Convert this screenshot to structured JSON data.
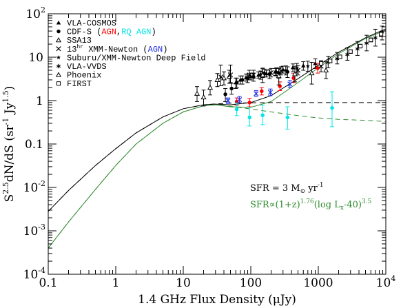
{
  "chart_data": {
    "type": "scatter",
    "title": "",
    "xlabel": "1.4 GHz Flux Density (μJy)",
    "ylabel": "S^{2.5}dN/dS (sr^{-1} Jy^{1.5})",
    "x_scale": "log",
    "y_scale": "log",
    "xlim": [
      0.1,
      10000
    ],
    "ylim": [
      0.0001,
      100
    ],
    "x_ticks": [
      {
        "value": 0.1,
        "label": "0.1"
      },
      {
        "value": 1,
        "label": "1"
      },
      {
        "value": 10,
        "label": "10"
      },
      {
        "value": 100,
        "label": "100"
      },
      {
        "value": 1000,
        "label": "1000"
      },
      {
        "value": 10000,
        "label": "10",
        "exp": "4"
      }
    ],
    "y_ticks": [
      {
        "value": 0.0001,
        "label": "10",
        "exp": "-4"
      },
      {
        "value": 0.001,
        "label": "10",
        "exp": "-3"
      },
      {
        "value": 0.01,
        "label": "10",
        "exp": "-2"
      },
      {
        "value": 0.1,
        "label": "0.1"
      },
      {
        "value": 1,
        "label": "1"
      },
      {
        "value": 10,
        "label": "10"
      },
      {
        "value": 100,
        "label": "10",
        "exp": "2"
      }
    ],
    "legend": {
      "placement": "top-left",
      "entries": [
        {
          "marker": "filled-triangle",
          "parts": [
            {
              "text": "VLA-COSMOS",
              "color": "#000000"
            }
          ]
        },
        {
          "marker": "filled-circle",
          "parts": [
            {
              "text": "CDF-S (",
              "color": "#000000"
            },
            {
              "text": "AGN",
              "color": "#ff0000"
            },
            {
              "text": ",",
              "color": "#000000"
            },
            {
              "text": "RQ AGN",
              "color": "#00e5e5"
            },
            {
              "text": ")",
              "color": "#000000"
            }
          ]
        },
        {
          "marker": "open-triangle",
          "parts": [
            {
              "text": "SSA13",
              "color": "#000000"
            }
          ]
        },
        {
          "marker": "cross",
          "parts": [
            {
              "text": "13",
              "color": "#000000"
            },
            {
              "text": "hr",
              "color": "#000000",
              "sup": true
            },
            {
              "text": " XMM-Newton (",
              "color": "#000000"
            },
            {
              "text": "AGN",
              "color": "#1f2fe0"
            },
            {
              "text": ")",
              "color": "#000000"
            }
          ]
        },
        {
          "marker": "star",
          "parts": [
            {
              "text": "Suburu/XMM-Newton Deep Field",
              "color": "#000000"
            }
          ]
        },
        {
          "marker": "asterisk",
          "parts": [
            {
              "text": "VLA-VVDS",
              "color": "#000000"
            }
          ]
        },
        {
          "marker": "open-triangle",
          "parts": [
            {
              "text": "Phoenix",
              "color": "#000000"
            }
          ]
        },
        {
          "marker": "open-square",
          "parts": [
            {
              "text": "FIRST",
              "color": "#000000"
            }
          ]
        }
      ]
    },
    "annotations": [
      {
        "color": "#000000",
        "parts": [
          {
            "t": "SFR = 3 M"
          },
          {
            "t": "⊙",
            "sub": true
          },
          {
            "t": " yr"
          },
          {
            "t": "-1",
            "sup": true
          }
        ]
      },
      {
        "color": "#2e8b2e",
        "parts": [
          {
            "t": "SFR∝(1+z)"
          },
          {
            "t": "1.76",
            "sup": true
          },
          {
            "t": "(log L"
          },
          {
            "t": "x",
            "sub": true
          },
          {
            "t": "-40)"
          },
          {
            "t": "3.5",
            "sup": true
          }
        ]
      }
    ],
    "series": [
      {
        "style": "solid-black",
        "x": [
          0.1,
          0.2,
          0.5,
          1,
          2,
          5,
          10,
          20,
          30,
          50,
          100,
          200,
          500,
          1000,
          2000,
          5000,
          10000
        ],
        "y": [
          0.0028,
          0.0085,
          0.032,
          0.078,
          0.18,
          0.42,
          0.65,
          0.8,
          0.83,
          0.8,
          0.9,
          1.3,
          3.2,
          6.5,
          13,
          28,
          45
        ]
      },
      {
        "style": "solid-green",
        "x": [
          0.1,
          0.2,
          0.5,
          1,
          2,
          5,
          10,
          20,
          30,
          50,
          100,
          200,
          500,
          1000,
          2000,
          5000,
          10000
        ],
        "y": [
          0.0004,
          0.0016,
          0.009,
          0.032,
          0.1,
          0.3,
          0.55,
          0.76,
          0.8,
          0.72,
          0.7,
          0.95,
          2.6,
          5.7,
          12,
          27,
          42
        ]
      },
      {
        "style": "dashed-black",
        "x": [
          0.1,
          0.2,
          0.5,
          1,
          2,
          5,
          10,
          20,
          30,
          50,
          100,
          200,
          500,
          1000,
          2000,
          5000,
          10000
        ],
        "y": [
          0.0028,
          0.0085,
          0.032,
          0.078,
          0.18,
          0.42,
          0.65,
          0.8,
          0.84,
          0.87,
          0.89,
          0.9,
          0.9,
          0.9,
          0.9,
          0.9,
          0.9
        ]
      },
      {
        "style": "dashed-green",
        "x": [
          0.1,
          0.2,
          0.5,
          1,
          2,
          5,
          10,
          20,
          30,
          50,
          100,
          200,
          500,
          1000,
          2000,
          5000,
          10000
        ],
        "y": [
          0.0004,
          0.0016,
          0.009,
          0.032,
          0.1,
          0.3,
          0.55,
          0.76,
          0.8,
          0.74,
          0.64,
          0.55,
          0.45,
          0.4,
          0.37,
          0.35,
          0.33
        ]
      },
      {
        "name": "VLA-COSMOS",
        "marker": "filled-triangle",
        "color": "#000000",
        "points": [
          {
            "x": 60,
            "y": 2.6,
            "lo": 1.9,
            "hi": 3.3
          },
          {
            "x": 70,
            "y": 3.0,
            "lo": 2.4,
            "hi": 3.7
          },
          {
            "x": 85,
            "y": 3.4,
            "lo": 2.8,
            "hi": 4.1
          },
          {
            "x": 100,
            "y": 3.6,
            "lo": 3.0,
            "hi": 4.3
          },
          {
            "x": 130,
            "y": 3.9,
            "lo": 3.3,
            "hi": 4.6
          },
          {
            "x": 170,
            "y": 4.2,
            "lo": 3.5,
            "hi": 5.0
          },
          {
            "x": 230,
            "y": 4.6,
            "lo": 3.8,
            "hi": 5.5
          },
          {
            "x": 300,
            "y": 5.2,
            "lo": 4.3,
            "hi": 6.2
          },
          {
            "x": 420,
            "y": 5.8,
            "lo": 4.6,
            "hi": 7.0
          },
          {
            "x": 600,
            "y": 6.4,
            "lo": 5.0,
            "hi": 7.9
          },
          {
            "x": 900,
            "y": 7.2,
            "lo": 5.5,
            "hi": 9.2
          }
        ]
      },
      {
        "name": "CDF-S",
        "marker": "filled-circle",
        "color": "#000000",
        "points": [
          {
            "x": 42,
            "y": 1.4,
            "lo": 0.95,
            "hi": 1.9
          },
          {
            "x": 52,
            "y": 1.9,
            "lo": 1.4,
            "hi": 2.5
          },
          {
            "x": 62,
            "y": 2.6,
            "lo": 2.0,
            "hi": 3.3
          },
          {
            "x": 75,
            "y": 3.0,
            "lo": 2.4,
            "hi": 3.7
          },
          {
            "x": 90,
            "y": 3.3,
            "lo": 2.6,
            "hi": 4.1
          },
          {
            "x": 110,
            "y": 3.5,
            "lo": 2.8,
            "hi": 4.3
          },
          {
            "x": 140,
            "y": 3.9,
            "lo": 3.1,
            "hi": 4.8
          },
          {
            "x": 190,
            "y": 4.1,
            "lo": 3.2,
            "hi": 5.2
          },
          {
            "x": 260,
            "y": 4.3,
            "lo": 3.3,
            "hi": 5.5
          },
          {
            "x": 350,
            "y": 4.6,
            "lo": 3.4,
            "hi": 6.0
          }
        ]
      },
      {
        "name": "CDF-S AGN",
        "marker": "filled-circle",
        "color": "#ff0000",
        "points": [
          {
            "x": 62,
            "y": 0.95,
            "lo": 0.78,
            "hi": 1.15
          },
          {
            "x": 96,
            "y": 0.9,
            "lo": 0.72,
            "hi": 1.12
          },
          {
            "x": 145,
            "y": 1.65,
            "lo": 1.35,
            "hi": 2.0
          },
          {
            "x": 270,
            "y": 2.15,
            "lo": 1.7,
            "hi": 2.7
          },
          {
            "x": 430,
            "y": 3.3,
            "lo": 2.6,
            "hi": 4.2
          },
          {
            "x": 980,
            "y": 5.6,
            "lo": 4.3,
            "hi": 7.2
          }
        ]
      },
      {
        "name": "CDF-S RQ AGN",
        "marker": "filled-circle",
        "color": "#00e5e5",
        "points": [
          {
            "x": 62,
            "y": 0.63,
            "lo": 0.45,
            "hi": 0.88
          },
          {
            "x": 96,
            "y": 0.41,
            "lo": 0.26,
            "hi": 0.7
          },
          {
            "x": 150,
            "y": 0.46,
            "lo": 0.28,
            "hi": 0.78
          },
          {
            "x": 350,
            "y": 0.41,
            "lo": 0.22,
            "hi": 0.72
          },
          {
            "x": 1600,
            "y": 0.68,
            "lo": 0.25,
            "hi": 1.6
          }
        ]
      },
      {
        "name": "SSA13",
        "marker": "open-triangle",
        "color": "#000000",
        "points": [
          {
            "x": 16,
            "y": 1.45,
            "lo": 0.95,
            "hi": 2.1
          },
          {
            "x": 20,
            "y": 1.2,
            "lo": 0.75,
            "hi": 1.75
          },
          {
            "x": 25,
            "y": 2.0,
            "lo": 1.35,
            "hi": 2.9
          },
          {
            "x": 32,
            "y": 3.0,
            "lo": 2.1,
            "hi": 4.2
          },
          {
            "x": 40,
            "y": 3.3,
            "lo": 2.3,
            "hi": 4.6
          },
          {
            "x": 48,
            "y": 3.6,
            "lo": 2.5,
            "hi": 5.0
          }
        ]
      },
      {
        "name": "13hr XMM-Newton",
        "marker": "cross",
        "color": "#000000",
        "points": [
          {
            "x": 36,
            "y": 3.5,
            "lo": 2.2,
            "hi": 6.6
          },
          {
            "x": 50,
            "y": 3.9,
            "lo": 2.6,
            "hi": 6.6
          },
          {
            "x": 95,
            "y": 3.9,
            "lo": 3.0,
            "hi": 5.0
          },
          {
            "x": 150,
            "y": 4.3,
            "lo": 3.4,
            "hi": 5.4
          },
          {
            "x": 200,
            "y": 4.4,
            "lo": 3.5,
            "hi": 5.5
          },
          {
            "x": 280,
            "y": 4.8,
            "lo": 3.9,
            "hi": 6.0
          },
          {
            "x": 500,
            "y": 5.0,
            "lo": 3.9,
            "hi": 6.4
          },
          {
            "x": 1100,
            "y": 6.2,
            "lo": 4.6,
            "hi": 8.3
          }
        ]
      },
      {
        "name": "13hr XMM-Newton AGN",
        "marker": "cross",
        "color": "#1f2fe0",
        "points": [
          {
            "x": 46,
            "y": 1.0,
            "lo": 0.86,
            "hi": 1.15
          },
          {
            "x": 68,
            "y": 1.05,
            "lo": 0.9,
            "hi": 1.25
          },
          {
            "x": 120,
            "y": 1.45,
            "lo": 1.25,
            "hi": 1.7
          },
          {
            "x": 195,
            "y": 1.55,
            "lo": 1.3,
            "hi": 1.85
          },
          {
            "x": 380,
            "y": 2.4,
            "lo": 2.0,
            "hi": 2.9
          }
        ]
      },
      {
        "name": "Suburu/XMM-Newton Deep Field",
        "marker": "star",
        "color": "#000000",
        "points": [
          {
            "x": 110,
            "y": 4.1,
            "lo": 3.3,
            "hi": 5.0
          },
          {
            "x": 160,
            "y": 4.3,
            "lo": 3.5,
            "hi": 5.3
          },
          {
            "x": 240,
            "y": 4.6,
            "lo": 3.7,
            "hi": 5.7
          },
          {
            "x": 330,
            "y": 5.0,
            "lo": 3.9,
            "hi": 6.3
          },
          {
            "x": 480,
            "y": 5.6,
            "lo": 4.3,
            "hi": 7.2
          },
          {
            "x": 700,
            "y": 6.2,
            "lo": 4.7,
            "hi": 8.1
          }
        ]
      },
      {
        "name": "VLA-VVDS",
        "marker": "asterisk",
        "color": "#000000",
        "points": [
          {
            "x": 1400,
            "y": 7.6,
            "lo": 5.7,
            "hi": 10.5
          },
          {
            "x": 1900,
            "y": 9.2,
            "lo": 7.0,
            "hi": 12.8
          },
          {
            "x": 2700,
            "y": 11.5,
            "lo": 8.5,
            "hi": 16.5
          },
          {
            "x": 3800,
            "y": 15.5,
            "lo": 11,
            "hi": 23
          },
          {
            "x": 5200,
            "y": 21,
            "lo": 14,
            "hi": 32
          },
          {
            "x": 7000,
            "y": 28,
            "lo": 18,
            "hi": 44
          },
          {
            "x": 8800,
            "y": 38,
            "lo": 25,
            "hi": 52
          }
        ]
      },
      {
        "name": "Phoenix",
        "marker": "open-triangle",
        "color": "#000000",
        "points": [
          {
            "x": 150,
            "y": 3.9,
            "lo": 2.6,
            "hi": 5.6
          },
          {
            "x": 260,
            "y": 3.7,
            "lo": 2.3,
            "hi": 5.6
          },
          {
            "x": 450,
            "y": 4.1,
            "lo": 2.7,
            "hi": 6.2
          },
          {
            "x": 800,
            "y": 4.3,
            "lo": 2.4,
            "hi": 7.6
          },
          {
            "x": 1300,
            "y": 5.0,
            "lo": 3.2,
            "hi": 7.8
          }
        ]
      },
      {
        "name": "FIRST",
        "marker": "open-square",
        "color": "#000000",
        "points": [
          {
            "x": 1100,
            "y": 7.2,
            "lo": 6.6,
            "hi": 7.9
          },
          {
            "x": 1500,
            "y": 8.2,
            "lo": 7.5,
            "hi": 9.0
          },
          {
            "x": 2100,
            "y": 10.2,
            "lo": 9.3,
            "hi": 11.2
          },
          {
            "x": 3000,
            "y": 13.5,
            "lo": 12.3,
            "hi": 14.8
          },
          {
            "x": 4200,
            "y": 18,
            "lo": 16.3,
            "hi": 19.8
          },
          {
            "x": 6000,
            "y": 25,
            "lo": 22.5,
            "hi": 27.8
          },
          {
            "x": 8500,
            "y": 34,
            "lo": 30,
            "hi": 38
          }
        ]
      }
    ]
  }
}
